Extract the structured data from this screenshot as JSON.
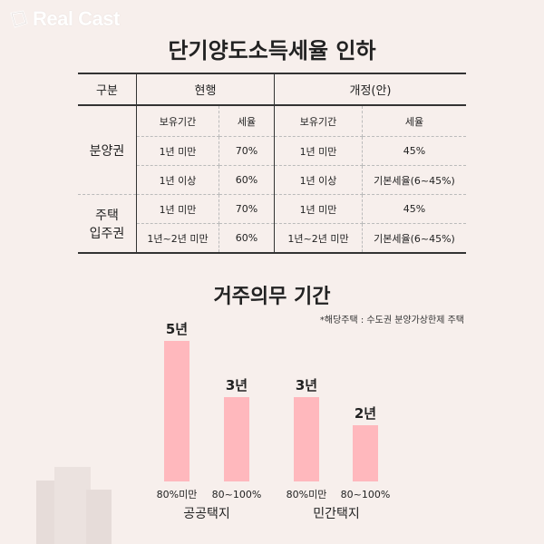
{
  "logo": {
    "text": "Real Cast"
  },
  "table_title": "단기양도소득세율 인하",
  "table": {
    "header": {
      "category": "구분",
      "current": "현행",
      "revised": "개정(안)"
    },
    "sub": {
      "period": "보유기간",
      "rate": "세율"
    },
    "groups": [
      {
        "name": "분양권",
        "rows": [
          {
            "cur_period": "1년 미만",
            "cur_rate": "70%",
            "new_period": "1년 미만",
            "new_rate": "45%"
          },
          {
            "cur_period": "1년 이상",
            "cur_rate": "60%",
            "new_period": "1년 이상",
            "new_rate": "기본세율(6~45%)"
          }
        ]
      },
      {
        "name_line1": "주택",
        "name_line2": "입주권",
        "rows": [
          {
            "cur_period": "1년 미만",
            "cur_rate": "70%",
            "new_period": "1년 미만",
            "new_rate": "45%"
          },
          {
            "cur_period": "1년~2년 미만",
            "cur_rate": "60%",
            "new_period": "1년~2년 미만",
            "new_rate": "기본세율(6~45%)"
          }
        ]
      }
    ]
  },
  "chart_title": "거주의무 기간",
  "chart_note": "*해당주택 : 수도권 분양가상한제 주택",
  "chart_data": {
    "type": "bar",
    "title": "거주의무 기간",
    "categories": [
      "80%미만",
      "80~100%",
      "80%미만",
      "80~100%"
    ],
    "values": [
      5,
      3,
      3,
      2
    ],
    "value_labels": [
      "5년",
      "3년",
      "3년",
      "2년"
    ],
    "groups": [
      "공공택지",
      "민간택지"
    ],
    "bar_color": "#ffb8bd",
    "ylim": [
      0,
      5
    ]
  },
  "colors": {
    "background": "#f7efec",
    "bar": "#ffb8bd"
  }
}
